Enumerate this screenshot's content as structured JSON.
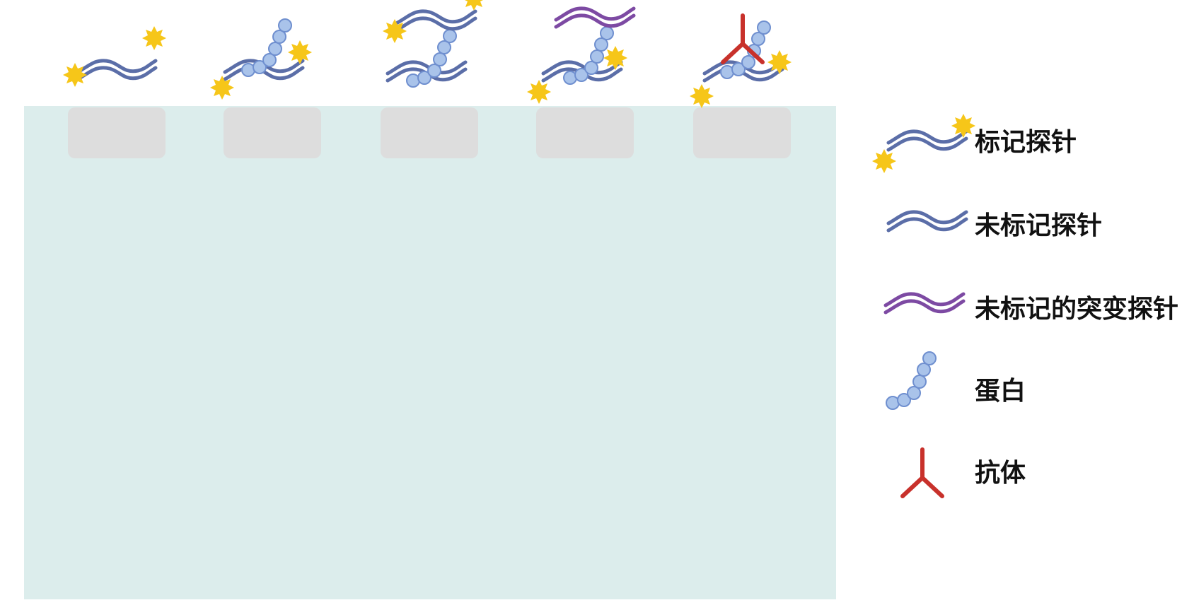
{
  "legend": {
    "labeled_probe": "标记探针",
    "unlabeled_probe": "未标记探针",
    "unlabeled_mutant_probe": "未标记的突变探针",
    "protein": "蛋白",
    "antibody": "抗体"
  },
  "colors": {
    "gel": "#dcedec",
    "well": "#dddddd",
    "probe": "#5b6ea8",
    "mutant_probe": "#7d4aa3",
    "label": "#f6c619",
    "protein_fill": "#a9c3ea",
    "protein_stroke": "#6f8fcf",
    "antibody": "#c8312b"
  }
}
